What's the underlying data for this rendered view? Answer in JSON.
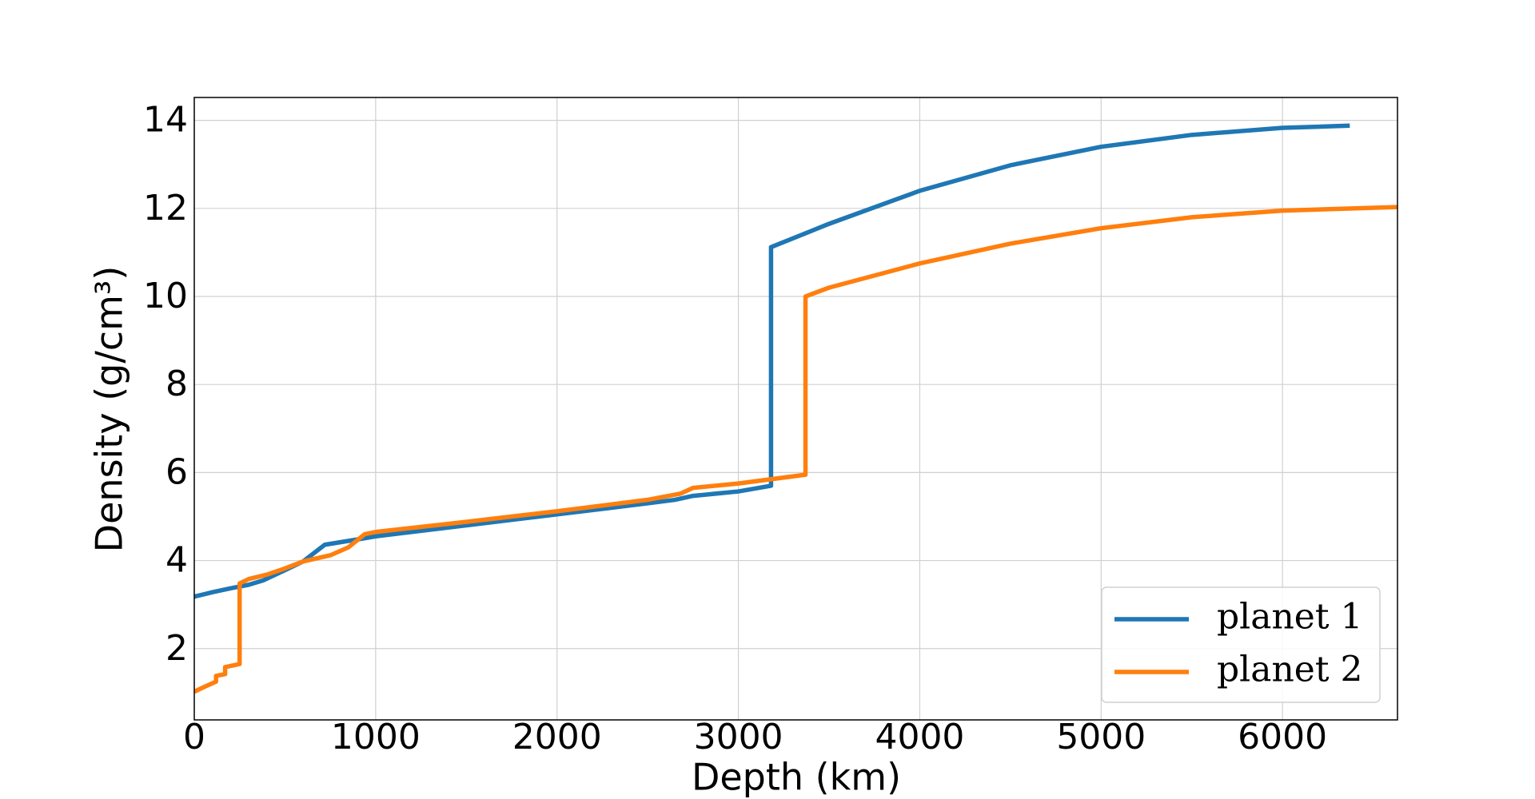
{
  "chart_data": {
    "type": "line",
    "xlabel": "Depth (km)",
    "ylabel": "Density (g/cm³)",
    "xlim": [
      0,
      6634
    ],
    "xticks": [
      0,
      1000,
      2000,
      3000,
      4000,
      5000,
      6000
    ],
    "ylim": [
      0.38,
      14.52
    ],
    "yticks": [
      2,
      4,
      6,
      8,
      10,
      12,
      14
    ],
    "grid": true,
    "legend": "lower right",
    "series": [
      {
        "name": "planet 1",
        "color": "#1f77b4",
        "x": [
          0,
          100,
          200,
          300,
          380,
          500,
          600,
          720,
          900,
          1000,
          1500,
          2000,
          2500,
          2650,
          2750,
          3000,
          3180,
          3180,
          3500,
          4000,
          4500,
          5000,
          5500,
          6000,
          6371
        ],
        "values": [
          3.18,
          3.28,
          3.37,
          3.45,
          3.55,
          3.78,
          3.98,
          4.36,
          4.48,
          4.55,
          4.8,
          5.05,
          5.3,
          5.38,
          5.47,
          5.57,
          5.7,
          11.12,
          11.65,
          12.4,
          12.98,
          13.4,
          13.67,
          13.83,
          13.88
        ]
      },
      {
        "name": "planet 2",
        "color": "#ff7f0e",
        "x": [
          0,
          50,
          120,
          120,
          170,
          170,
          250,
          250,
          300,
          400,
          500,
          600,
          750,
          850,
          940,
          1000,
          1500,
          2000,
          2500,
          2680,
          2750,
          3000,
          3370,
          3370,
          3500,
          4000,
          4500,
          5000,
          5500,
          6000,
          6634
        ],
        "values": [
          1.02,
          1.12,
          1.25,
          1.38,
          1.42,
          1.58,
          1.65,
          3.48,
          3.58,
          3.68,
          3.82,
          3.98,
          4.12,
          4.3,
          4.6,
          4.65,
          4.88,
          5.12,
          5.38,
          5.52,
          5.65,
          5.75,
          5.95,
          10.0,
          10.2,
          10.75,
          11.2,
          11.55,
          11.8,
          11.95,
          12.03
        ]
      }
    ]
  }
}
